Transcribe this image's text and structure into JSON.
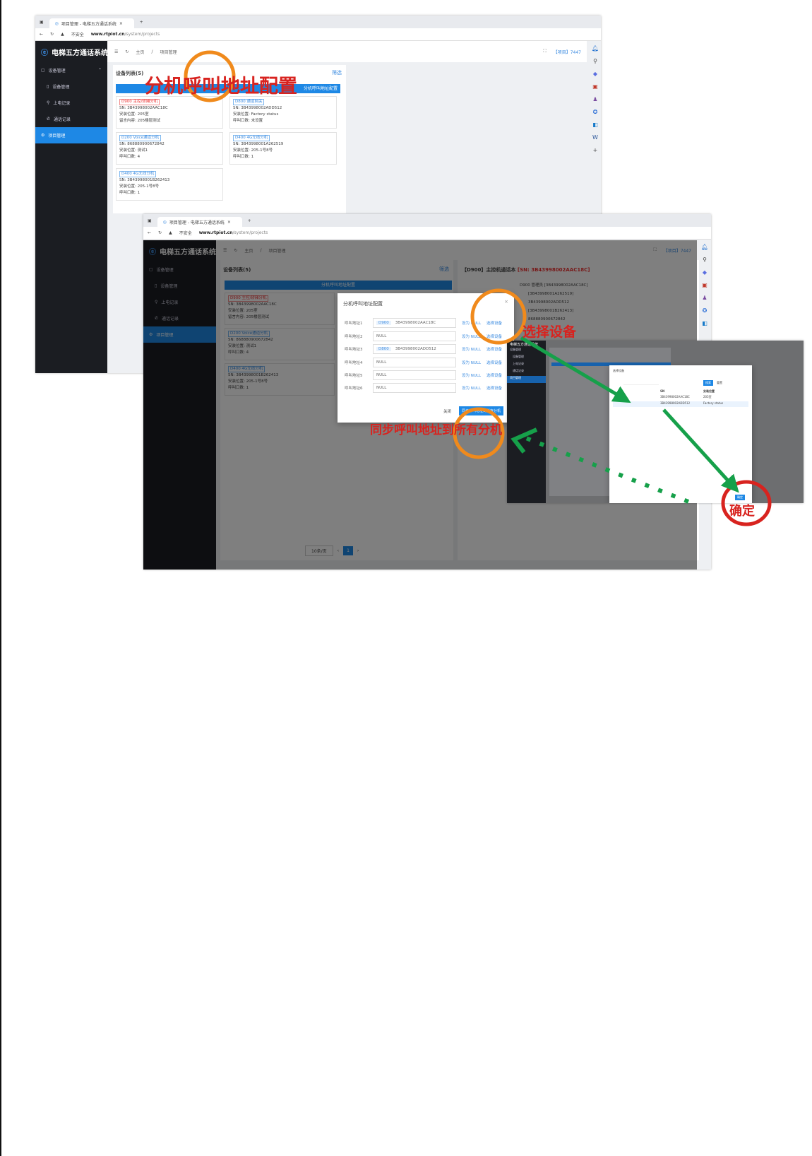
{
  "browser": {
    "tab_title": "项目管理 - 电梯五方通话系统",
    "new_tab": "+",
    "security": "不安全",
    "url_host": "www.rtpiot.cn",
    "url_path": "/system/projects"
  },
  "app": {
    "title": "电梯五方通话系统",
    "breadcrumb_home": "主页",
    "breadcrumb_current": "项目管理",
    "project_label": "【项目】7447"
  },
  "sidebar": {
    "items": [
      {
        "label": "设备管理"
      },
      {
        "label": "设备管理"
      },
      {
        "label": "上电记录"
      },
      {
        "label": "通话记录"
      },
      {
        "label": "项目管理"
      }
    ]
  },
  "device_list": {
    "title": "设备列表(5)",
    "filter": "筛选",
    "config_button": "分机呼叫地址配置",
    "devices": [
      {
        "tag": "D900 主控/轿厢分机",
        "tag_color": "red",
        "sn": "SN: 3B43998002AAC18C",
        "l2": "安装位置: 205室",
        "l3": "留言内容: 205楼层测试"
      },
      {
        "tag": "D800 通道网关",
        "tag_color": "blue",
        "sn": "SN: 3B43998002ADD512",
        "l2": "安装位置: Factory status",
        "l3": "呼叫口数: 未设置"
      },
      {
        "tag": "D200 Voice通道分机",
        "tag_color": "blue",
        "sn": "SN: 868880900672842",
        "l2": "安装位置: 测试1",
        "l3": "呼叫口数: 4"
      },
      {
        "tag": "D400 4G无线分机",
        "tag_color": "blue",
        "sn": "SN: 3B43998001A262519",
        "l2": "安装位置: 205-1号8号",
        "l3": "呼叫口数: 1"
      },
      {
        "tag": "D400 4G无线分机",
        "tag_color": "blue",
        "sn": "SN: 3B43998001B262413",
        "l2": "安装位置: 205-1号8号",
        "l3": "呼叫口数: 1"
      }
    ]
  },
  "right_panel": {
    "title": "【D900】主控机通话本",
    "sn": "[SN: 3B43998002AAC18C]",
    "tree": [
      "D900 管理员 [3B43998002AAC18C]",
      "[3B43998001A262519]",
      "3B43998002ADD512",
      "[3B43998001B262413]",
      "868880900672842"
    ]
  },
  "modal": {
    "title": "分机呼叫地址配置",
    "close": "×",
    "set_null": "设为 NULL",
    "select_device": "选择设备",
    "cancel": "关闭",
    "sync": "同步呼叫地址到所有分机",
    "rows": [
      {
        "label": "呼叫地址1",
        "type": "D900",
        "value": "3B43998002AAC18C"
      },
      {
        "label": "呼叫地址2",
        "type": "",
        "value": "NULL"
      },
      {
        "label": "呼叫地址3",
        "type": "D800",
        "value": "3B43998002ADD512"
      },
      {
        "label": "呼叫地址4",
        "type": "",
        "value": "NULL"
      },
      {
        "label": "呼叫地址5",
        "type": "",
        "value": "NULL"
      },
      {
        "label": "呼叫地址6",
        "type": "",
        "value": "NULL"
      }
    ]
  },
  "pagination": {
    "page_size": "10条/页",
    "current_page": "1"
  },
  "select_modal": {
    "title": "选择设备",
    "search_button": "搜索",
    "reset_button": "重置",
    "col_sn": "SN",
    "col_location": "安装位置",
    "confirm": "确定",
    "rows": [
      {
        "sn": "3B43998002AAC18C",
        "location": "205室"
      },
      {
        "sn": "3B43998002ADD512",
        "location": "Factory status"
      }
    ]
  },
  "annotations": {
    "title": "分机呼叫地址配置",
    "select": "选择设备",
    "sync": "同步呼叫地址到所有分机",
    "confirm": "确定"
  },
  "colors": {
    "annotation_red": "#d8231f",
    "circle_orange": "#f08a1c",
    "arrow_green": "#16a04a",
    "accent_blue": "#1e88e5",
    "sidebar_dark": "#1b1d22"
  }
}
